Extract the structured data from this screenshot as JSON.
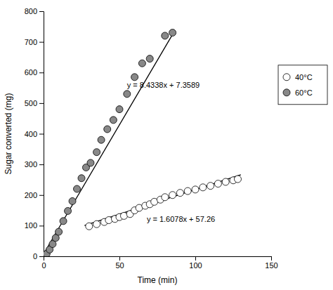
{
  "chart_data": {
    "type": "scatter",
    "title": "",
    "xlabel": "Time (min)",
    "ylabel": "Sugar converted (mg)",
    "xlim": [
      0,
      150
    ],
    "ylim": [
      0,
      800
    ],
    "xticks": [
      0,
      50,
      100,
      150
    ],
    "yticks": [
      0,
      100,
      200,
      300,
      400,
      500,
      600,
      700,
      800
    ],
    "legend": "right",
    "series": [
      {
        "name": "40°C",
        "type": "scatter",
        "color": "#ffffff",
        "x": [
          30,
          35,
          40,
          43,
          47,
          50,
          53,
          57,
          60,
          63,
          67,
          70,
          73,
          77,
          80,
          85,
          90,
          95,
          100,
          105,
          110,
          115,
          120,
          125,
          128
        ],
        "values": [
          98,
          105,
          112,
          118,
          122,
          128,
          132,
          138,
          150,
          158,
          165,
          170,
          178,
          185,
          193,
          200,
          207,
          213,
          218,
          225,
          230,
          237,
          243,
          248,
          252
        ]
      },
      {
        "name": "60°C",
        "type": "scatter",
        "color": "#888888",
        "x": [
          0,
          2,
          4,
          6,
          8,
          10,
          13,
          16,
          19,
          22,
          25,
          28,
          31,
          35,
          38,
          42,
          46,
          50,
          55,
          60,
          65,
          70,
          80,
          85
        ],
        "values": [
          0,
          8,
          22,
          40,
          60,
          80,
          115,
          148,
          180,
          220,
          255,
          290,
          305,
          340,
          380,
          415,
          445,
          480,
          530,
          585,
          630,
          645,
          720,
          730
        ]
      },
      {
        "type": "line",
        "color": "#000000",
        "x": [
          27,
          130
        ],
        "values": [
          100.6706,
          266.274
        ]
      },
      {
        "type": "line",
        "color": "#000000",
        "x": [
          0,
          86
        ],
        "values": [
          7.3589,
          732.6657
        ]
      }
    ],
    "annotations": [
      {
        "text": "y = 8.4338x + 7.3589",
        "x": 55,
        "y": 545
      },
      {
        "text": "y = 1.6078x + 57.26",
        "x": 68,
        "y": 107
      }
    ]
  }
}
